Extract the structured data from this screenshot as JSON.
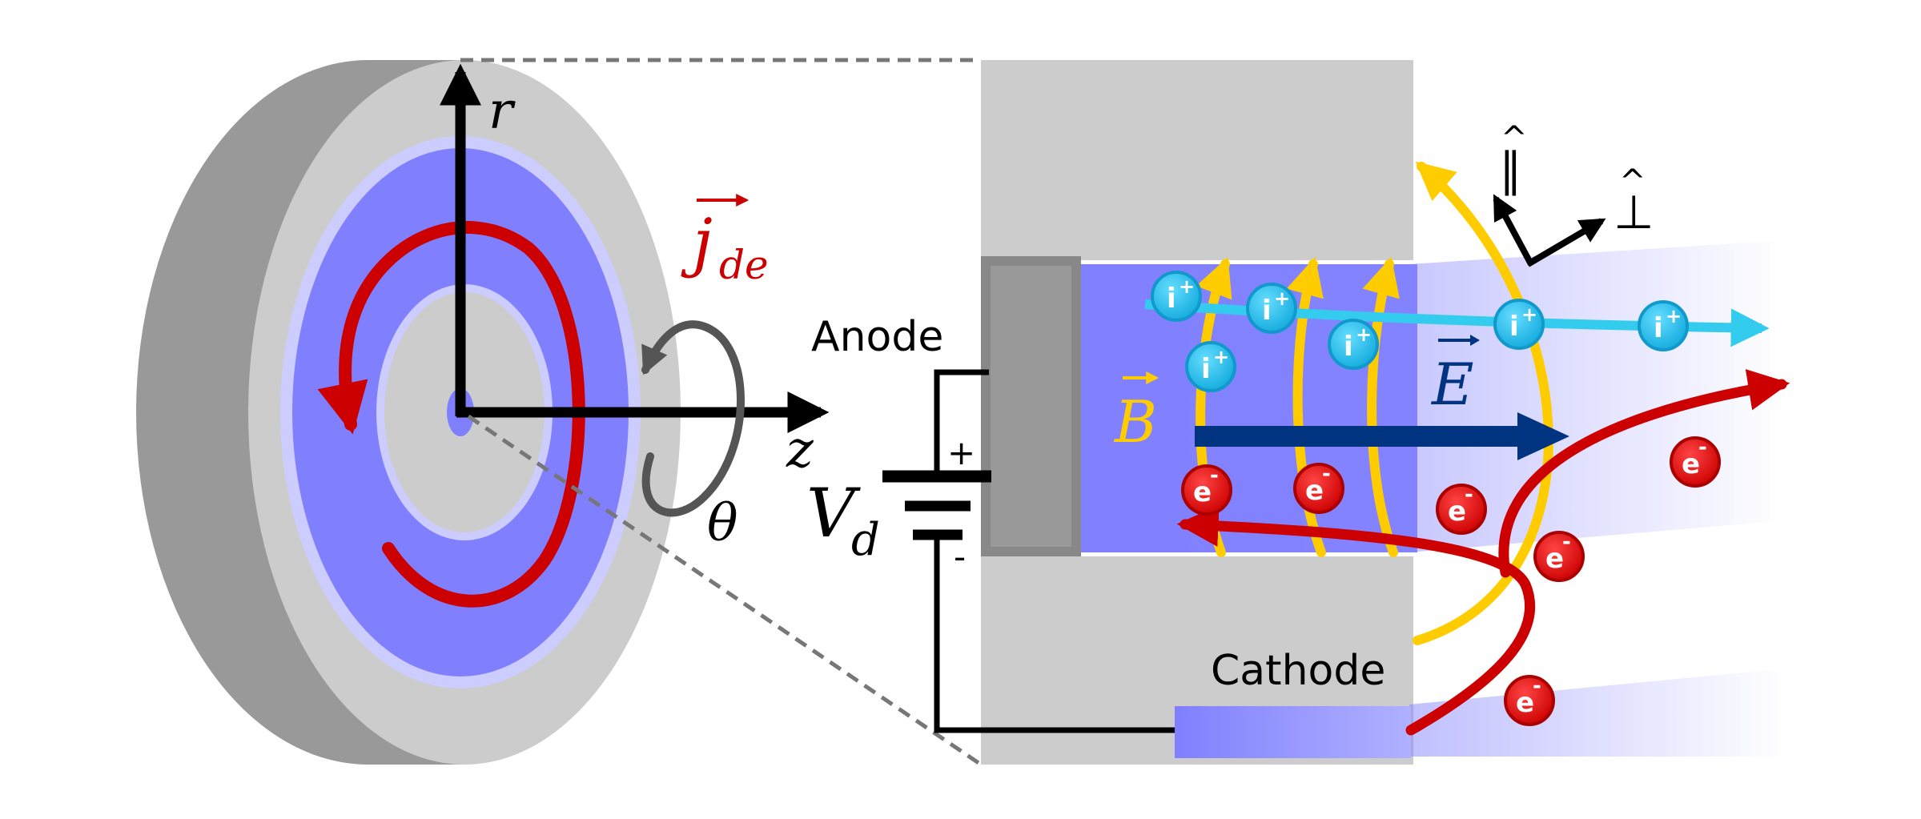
{
  "labels": {
    "r": "r",
    "z": "z",
    "theta": "θ",
    "jde_symbol": "j",
    "jde_sub": "de",
    "anode": "Anode",
    "cathode": "Cathode",
    "vd_symbol": "V",
    "vd_sub": "d",
    "plus": "+",
    "minus": "-",
    "B": "B",
    "E": "E",
    "parallel": "∥",
    "perp": "⊥",
    "ion": "i+",
    "ion_letter": "i",
    "ion_charge": "+",
    "electron_letter": "e",
    "electron_charge": "-"
  },
  "colors": {
    "thruster_body": "#cccccc",
    "thruster_side": "#999999",
    "channel_plasma": "#8080ff",
    "channel_edge": "#ccccff",
    "current_red": "#cc0000",
    "magnetic_yellow": "#ffcc00",
    "electric_blue": "#003380",
    "ion_cyan": "#33ccee",
    "electron_red": "#dd1111",
    "anode_gray": "#888888"
  }
}
